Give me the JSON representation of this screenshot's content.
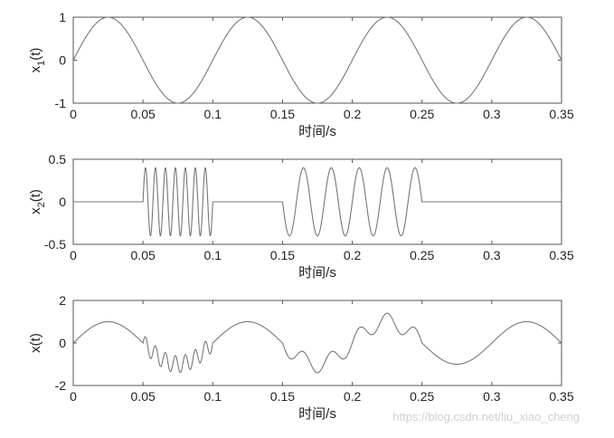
{
  "watermark": "https://blog.csdn.net/liu_xiao_cheng",
  "chart_data": [
    {
      "type": "line",
      "xlabel": "时间/s",
      "ylabel": "x",
      "ylabel_sub": "1",
      "ylabel_suffix": "(t)",
      "xlim": [
        0,
        0.35
      ],
      "ylim": [
        -1,
        1
      ],
      "xticks": [
        "0",
        "0.05",
        "0.1",
        "0.15",
        "0.2",
        "0.25",
        "0.3",
        "0.35"
      ],
      "yticks": [
        "1",
        "0",
        "-1"
      ],
      "ytick_values": [
        1,
        0,
        -1
      ],
      "grid": false,
      "signal": "x1",
      "series": [
        {
          "formula": "sin(2*pi*10*t)",
          "components": [
            {
              "amplitude": 1,
              "frequency_hz": 10,
              "t_start": 0,
              "t_end": 0.35
            }
          ]
        }
      ]
    },
    {
      "type": "line",
      "xlabel": "时间/s",
      "ylabel": "x",
      "ylabel_sub": "2",
      "ylabel_suffix": "(t)",
      "xlim": [
        0,
        0.35
      ],
      "ylim": [
        -0.5,
        0.5
      ],
      "xticks": [
        "0",
        "0.05",
        "0.1",
        "0.15",
        "0.2",
        "0.25",
        "0.3",
        "0.35"
      ],
      "yticks": [
        "0.5",
        "0",
        "-0.5"
      ],
      "ytick_values": [
        0.5,
        0,
        -0.5
      ],
      "grid": false,
      "signal": "x2",
      "series": [
        {
          "formula": "0.4*sin(2*pi*140*t) on [0.05,0.1]; 0.4*sin(2*pi*50*t) on [0.15,0.25]; 0 elsewhere",
          "components": [
            {
              "amplitude": 0.4,
              "frequency_hz": 140,
              "t_start": 0.05,
              "t_end": 0.1
            },
            {
              "amplitude": 0.4,
              "frequency_hz": 50,
              "t_start": 0.15,
              "t_end": 0.25
            }
          ]
        }
      ]
    },
    {
      "type": "line",
      "xlabel": "时间/s",
      "ylabel": "x(t)",
      "ylabel_sub": "",
      "ylabel_suffix": "",
      "xlim": [
        0,
        0.35
      ],
      "ylim": [
        -2,
        2
      ],
      "xticks": [
        "0",
        "0.05",
        "0.1",
        "0.15",
        "0.2",
        "0.25",
        "0.3",
        "0.35"
      ],
      "yticks": [
        "2",
        "0",
        "-2"
      ],
      "ytick_values": [
        2,
        0,
        -2
      ],
      "grid": false,
      "signal": "x1+x2",
      "series": [
        {
          "formula": "x1(t) + x2(t)",
          "components": [
            {
              "amplitude": 1,
              "frequency_hz": 10,
              "t_start": 0,
              "t_end": 0.35
            },
            {
              "amplitude": 0.4,
              "frequency_hz": 140,
              "t_start": 0.05,
              "t_end": 0.1
            },
            {
              "amplitude": 0.4,
              "frequency_hz": 50,
              "t_start": 0.15,
              "t_end": 0.25
            }
          ]
        }
      ]
    }
  ]
}
